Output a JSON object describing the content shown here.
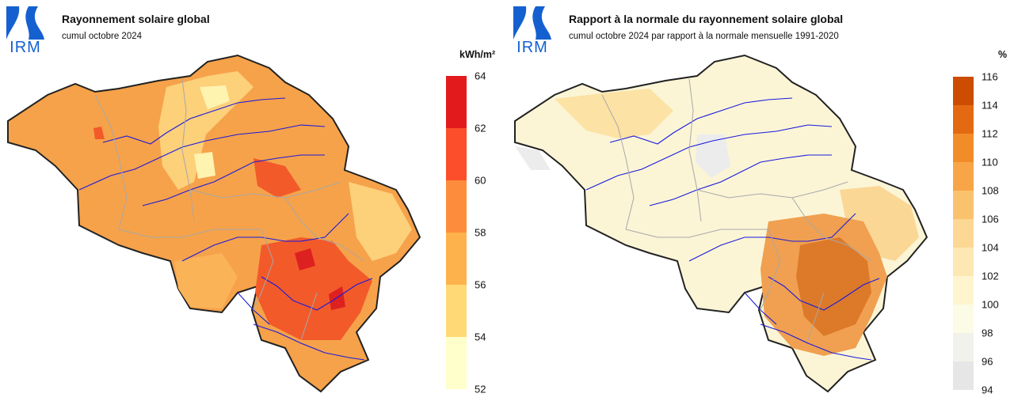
{
  "left": {
    "logo_text": "IRM",
    "title": "Rayonnement solaire global",
    "subtitle": "cumul octobre 2024",
    "unit": "kWh/m²",
    "legend": {
      "ticks": [
        "64",
        "62",
        "60",
        "58",
        "56",
        "54",
        "52"
      ],
      "colors": [
        "#e31a1c",
        "#fc4e2a",
        "#fd8d3c",
        "#feb24c",
        "#fed976",
        "#ffffcc"
      ]
    },
    "map_colors": {
      "base": "#f6a24a",
      "light": "#fdd07a",
      "pale": "#fff3b0",
      "hot": "#f25a2a",
      "hottest": "#dd2020",
      "mid": "#fbb357"
    }
  },
  "right": {
    "logo_text": "IRM",
    "title": "Rapport à la normale du rayonnement solaire global",
    "subtitle": "cumul octobre 2024 par rapport à la normale mensuelle 1991-2020",
    "unit": "%",
    "legend": {
      "ticks": [
        "116",
        "114",
        "112",
        "110",
        "108",
        "106",
        "104",
        "102",
        "100",
        "98",
        "96",
        "94"
      ],
      "colors": [
        "#cc4c02",
        "#e36a12",
        "#f28c28",
        "#f8a548",
        "#fbc26e",
        "#fcd894",
        "#fde8b4",
        "#fef5cf",
        "#fbfbe6",
        "#f2f2ec",
        "#e6e6e6"
      ]
    },
    "map_colors": {
      "base": "#fbf5d6",
      "light": "#fce2a4",
      "pale": "#ececec",
      "hot": "#f0a050",
      "hottest": "#dc7a2a",
      "mid": "#fbd796"
    }
  }
}
